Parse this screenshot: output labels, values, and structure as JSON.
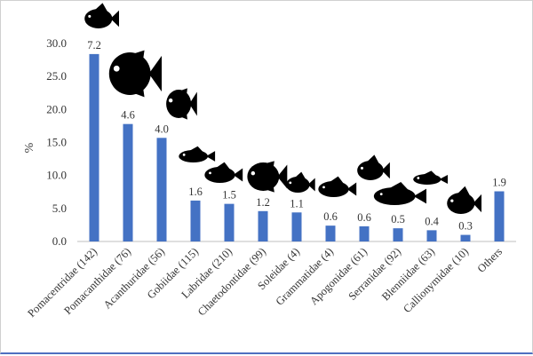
{
  "chart_data": {
    "type": "bar",
    "title": "",
    "xlabel": "",
    "ylabel": "%",
    "ylim": [
      0,
      30
    ],
    "yticks": [
      "0.0",
      "5.0",
      "10.0",
      "15.0",
      "20.0",
      "25.0",
      "30.0"
    ],
    "grid": false,
    "bar_color": "#4472c4",
    "categories": [
      "Pomacentridae (142)",
      "Pomacanthidae (76)",
      "Acanthuridae (56)",
      "Gobiidae (115)",
      "Labridae (210)",
      "Chaetodontidae (99)",
      "Soleidae (4)",
      "Grammatidae (4)",
      "Apogonidae (61)",
      "Serranidae (92)",
      "Blenniidae (63)",
      "Callionymidae (10)",
      "Others"
    ],
    "values": [
      28.4,
      17.8,
      15.7,
      6.2,
      5.7,
      4.6,
      4.4,
      2.4,
      2.3,
      2.0,
      1.7,
      1.0,
      7.6
    ],
    "data_labels": [
      "7.2",
      "4.6",
      "4.0",
      "1.6",
      "1.5",
      "1.2",
      "1.1",
      "0.6",
      "0.6",
      "0.5",
      "0.4",
      "0.3",
      "1.9"
    ],
    "icons": [
      "damselfish-icon",
      "angelfish-icon",
      "surgeonfish-icon",
      "goby-icon",
      "wrasse-icon",
      "butterflyfish-icon",
      "sole-icon",
      "basslet-icon",
      "cardinalfish-icon",
      "grouper-icon",
      "blenny-icon",
      "dragonet-icon",
      ""
    ]
  }
}
